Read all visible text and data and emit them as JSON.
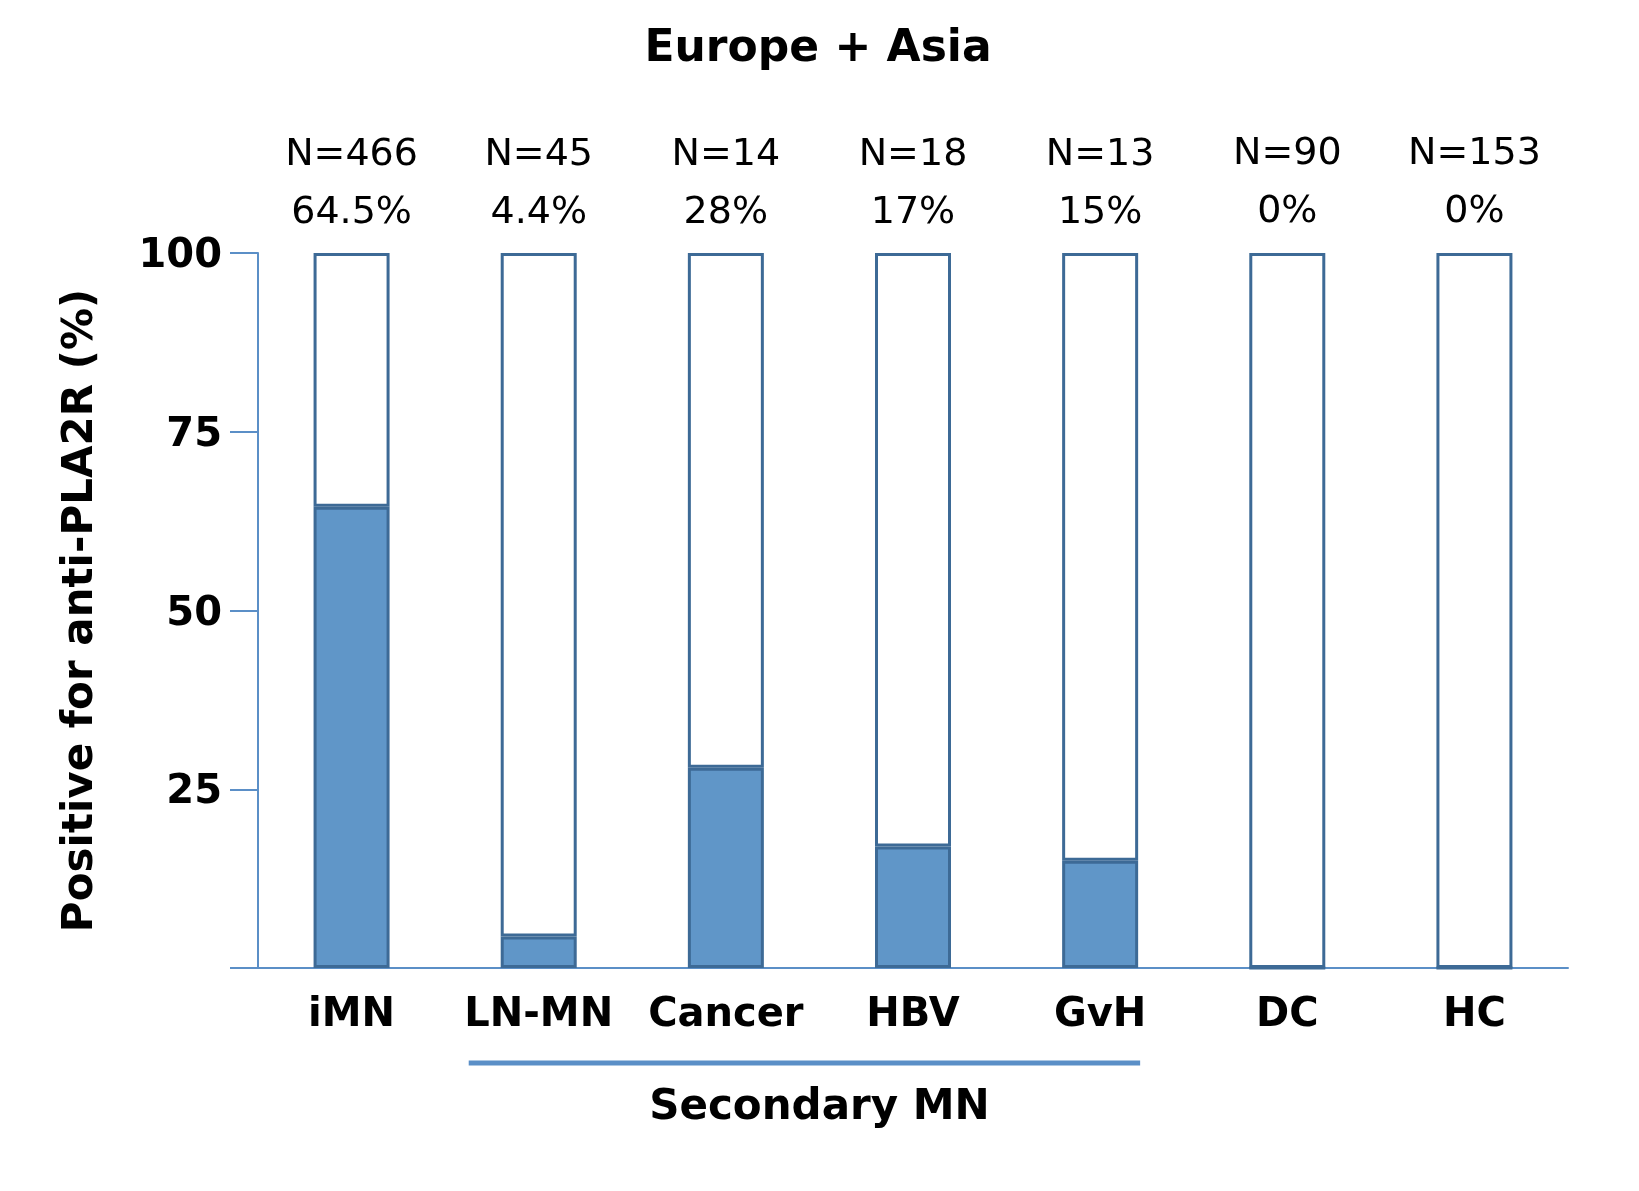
{
  "chart_data": {
    "type": "bar",
    "title": "Europe + Asia",
    "ylabel": "Positive for anti-PLA2R (%)",
    "categories": [
      "iMN",
      "LN-MN",
      "Cancer",
      "HBV",
      "GvH",
      "DC",
      "HC"
    ],
    "stacked": true,
    "series": [
      {
        "color": "#6096c8",
        "values": [
          64.5,
          4.4,
          28,
          17,
          15,
          0,
          0
        ],
        "value_labels": [
          "N=466\n64.5%",
          "N=45\n4.4%",
          "N=14\n28%",
          "N=18\n17%",
          "N=13\n15%",
          "N=90\n0%",
          "N=153\n0%"
        ]
      },
      {
        "color": "#ffffff",
        "values": [
          35.5,
          95.6,
          72,
          83,
          85,
          100,
          100
        ]
      }
    ],
    "ylim": [
      0,
      100
    ],
    "yticks": [
      {
        "value": 0,
        "label": null
      },
      25,
      50,
      75,
      100
    ],
    "grid": false,
    "annotations": [
      "Secondary MN"
    ]
  }
}
